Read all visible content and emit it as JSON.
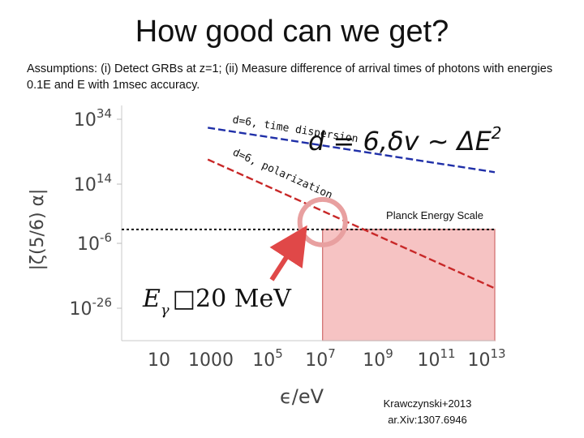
{
  "slide": {
    "title": "How good can we get?",
    "assumptions": "Assumptions: (i) Detect GRBs at z=1; (ii) Measure difference of arrival times of photons with energies 0.1E and E with 1msec accuracy.",
    "credit_line1": "Krawczynski+2013",
    "credit_line2": "ar.Xiv:1307.6946"
  },
  "chart_data": {
    "type": "line",
    "title": "",
    "xlabel": "ϵ/eV",
    "ylabel": "|ζ(5/6) α|",
    "x_log": true,
    "y_log": true,
    "xlim": [
      1,
      10000000000000.0
    ],
    "ylim": [
      1e-36,
      1e+38
    ],
    "x_ticks": [
      "10",
      "1000",
      "10^5",
      "10^7",
      "10^9",
      "10^11",
      "10^13"
    ],
    "y_ticks": [
      "10^34",
      "10^14",
      "10^-6",
      "10^-26"
    ],
    "series": [
      {
        "name": "d=6, time dispersion",
        "color": "#1f2fa8",
        "x": [
          1000.0,
          10000000000000.0
        ],
        "y": [
          1e+31,
          1e+17
        ]
      },
      {
        "name": "d=6, polarization",
        "color": "#c82828",
        "x": [
          1000.0,
          10000000000000.0
        ],
        "y": [
          1e+21,
          3e-20
        ]
      }
    ],
    "reference_line": {
      "label": "Planck Energy Scale",
      "y": 0.1,
      "x_range": [
        1,
        10000000000000.0
      ]
    },
    "shaded_region": {
      "x_from": 10000000.0,
      "x_to": 10000000000000.0,
      "y_from": 0.1,
      "y_to": 1e-36,
      "color": "#f6c3c3"
    },
    "highlight_circle": {
      "x": 10000000.0,
      "y": 20.0
    },
    "annotations": {
      "formula_main": "d = 6,δv ~ ΔE",
      "formula_exp": "2",
      "energy_E": "E",
      "energy_sub": "γ",
      "energy_value": "□20 MeV"
    }
  }
}
